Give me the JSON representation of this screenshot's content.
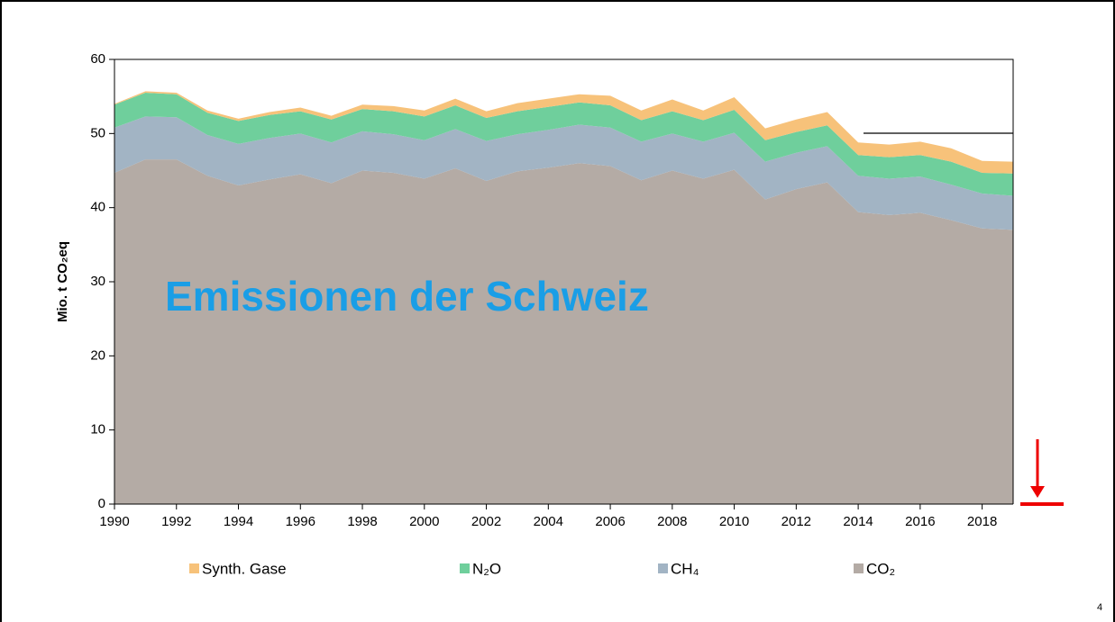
{
  "page_number": "4",
  "chart_data": {
    "type": "stacked_area",
    "ylabel": "Mio. t CO₂eq",
    "annotation": "Emissionen der Schweiz",
    "x": [
      1990,
      1991,
      1992,
      1993,
      1994,
      1995,
      1996,
      1997,
      1998,
      1999,
      2000,
      2001,
      2002,
      2003,
      2004,
      2005,
      2006,
      2007,
      2008,
      2009,
      2010,
      2011,
      2012,
      2013,
      2014,
      2015,
      2016,
      2017,
      2018,
      2019
    ],
    "series": [
      {
        "name": "CO₂",
        "color": "#b4aba5",
        "values": [
          44.7,
          46.5,
          46.5,
          44.3,
          43.0,
          43.8,
          44.5,
          43.3,
          45.0,
          44.7,
          43.9,
          45.3,
          43.6,
          44.9,
          45.4,
          46.0,
          45.6,
          43.7,
          45.0,
          43.9,
          45.1,
          41.1,
          42.5,
          43.4,
          39.4,
          39.0,
          39.3,
          38.3,
          37.2,
          37.0
        ]
      },
      {
        "name": "CH₄",
        "color": "#a2b4c4",
        "values": [
          6.1,
          5.8,
          5.7,
          5.5,
          5.6,
          5.6,
          5.5,
          5.5,
          5.3,
          5.2,
          5.2,
          5.3,
          5.4,
          5.0,
          5.1,
          5.2,
          5.2,
          5.2,
          5.0,
          5.0,
          5.0,
          5.1,
          4.9,
          4.9,
          4.9,
          4.9,
          4.9,
          4.8,
          4.7,
          4.6
        ]
      },
      {
        "name": "N₂O",
        "color": "#6fcf9c",
        "values": [
          3.1,
          3.2,
          3.1,
          3.0,
          3.1,
          3.1,
          3.0,
          3.1,
          3.0,
          3.1,
          3.2,
          3.2,
          3.1,
          3.1,
          3.1,
          3.0,
          3.0,
          2.9,
          3.0,
          2.9,
          3.1,
          2.9,
          2.8,
          2.8,
          2.8,
          2.9,
          2.9,
          3.1,
          2.8,
          3.0
        ]
      },
      {
        "name": "Synth. Gase",
        "color": "#f7c27a",
        "values": [
          0.1,
          0.2,
          0.2,
          0.3,
          0.3,
          0.4,
          0.5,
          0.5,
          0.6,
          0.7,
          0.8,
          0.9,
          0.9,
          1.1,
          1.1,
          1.1,
          1.3,
          1.3,
          1.6,
          1.3,
          1.7,
          1.6,
          1.7,
          1.8,
          1.7,
          1.7,
          1.8,
          1.8,
          1.6,
          1.6
        ]
      }
    ],
    "xlim": [
      1990,
      2019
    ],
    "xticks": [
      1990,
      1992,
      1994,
      1996,
      1998,
      2000,
      2002,
      2004,
      2006,
      2008,
      2010,
      2012,
      2014,
      2016,
      2018
    ],
    "ylim": [
      0,
      60
    ],
    "yticks": [
      0,
      10,
      20,
      30,
      40,
      50,
      60
    ],
    "legend": "bottom"
  }
}
